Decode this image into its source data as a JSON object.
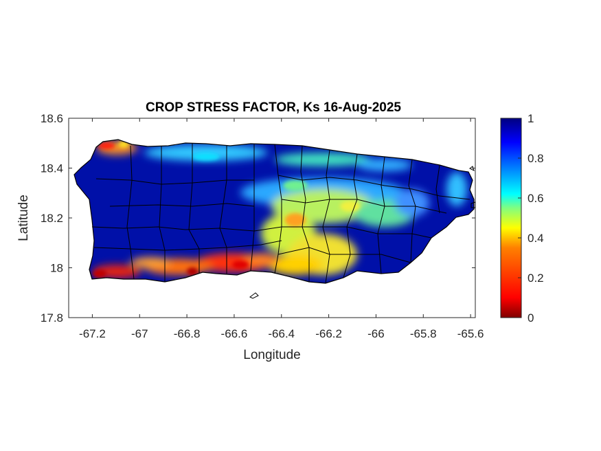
{
  "title": "CROP STRESS FACTOR, Ks  16-Aug-2025",
  "xlabel": "Longitude",
  "ylabel": "Latitude",
  "xticks": [
    "-67.2",
    "-67",
    "-66.8",
    "-66.6",
    "-66.4",
    "-66.2",
    "-66",
    "-65.8",
    "-65.6"
  ],
  "yticks": [
    "18.6",
    "18.4",
    "18.2",
    "18",
    "17.8"
  ],
  "colorbar": {
    "ticks": [
      "1",
      "0.8",
      "0.6",
      "0.4",
      "0.2",
      "0"
    ],
    "colormap": "jet",
    "range": [
      0,
      1
    ]
  },
  "chart_data": {
    "type": "heatmap",
    "title": "CROP STRESS FACTOR, Ks  16-Aug-2025",
    "xlabel": "Longitude",
    "ylabel": "Latitude",
    "xlim": [
      -67.3,
      -65.58
    ],
    "ylim": [
      17.8,
      18.6
    ],
    "clim": [
      0,
      1
    ],
    "colormap": "jet",
    "x_ticks": [
      -67.2,
      -67,
      -66.8,
      -66.6,
      -66.4,
      -66.2,
      -66,
      -65.8,
      -65.6
    ],
    "y_ticks": [
      17.8,
      18,
      18.2,
      18.4,
      18.6
    ],
    "colorbar_ticks": [
      0,
      0.2,
      0.4,
      0.6,
      0.8,
      1
    ],
    "grid": false
  },
  "colors": {
    "jet_stops": [
      "#800000",
      "#ff0000",
      "#ff8000",
      "#ffff00",
      "#80ff80",
      "#00ffff",
      "#0080ff",
      "#0000ff",
      "#000080"
    ],
    "island_base": "#0010a8",
    "border": "#000000"
  }
}
